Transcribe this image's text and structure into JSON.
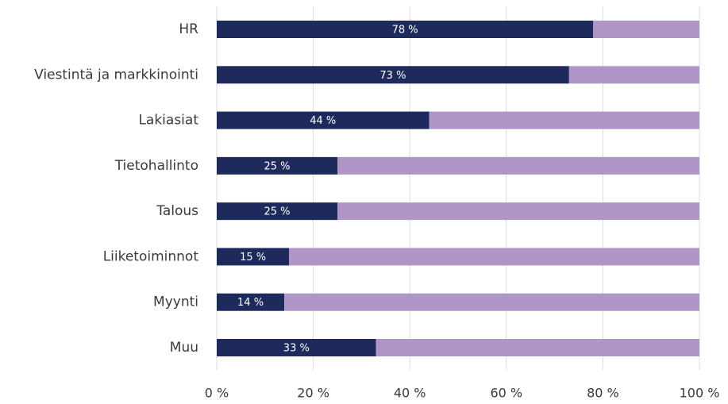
{
  "chart_data": {
    "type": "stacked_barh",
    "categories": [
      "HR",
      "Viestintä ja markkinointi",
      "Lakiasiat",
      "Tietohallinto",
      "Talous",
      "Liiketoiminnot",
      "Myynti",
      "Muu"
    ],
    "series": [
      {
        "color": "#1f2a5c",
        "values": [
          78,
          73,
          44,
          25,
          25,
          15,
          14,
          33
        ],
        "value_labels": [
          "78 %",
          "73 %",
          "44 %",
          "25 %",
          "25 %",
          "15 %",
          "14 %",
          "33 %"
        ]
      },
      {
        "color": "#b095c7",
        "values": [
          22,
          27,
          56,
          75,
          75,
          85,
          86,
          67
        ]
      }
    ],
    "xlim": [
      0,
      100
    ],
    "xticks": [
      {
        "value": 0,
        "label": "0 %"
      },
      {
        "value": 20,
        "label": "20 %"
      },
      {
        "value": 40,
        "label": "40 %"
      },
      {
        "value": 60,
        "label": "60 %"
      },
      {
        "value": 80,
        "label": "80 %"
      },
      {
        "value": 100,
        "label": "100 %"
      }
    ],
    "grid": true
  }
}
